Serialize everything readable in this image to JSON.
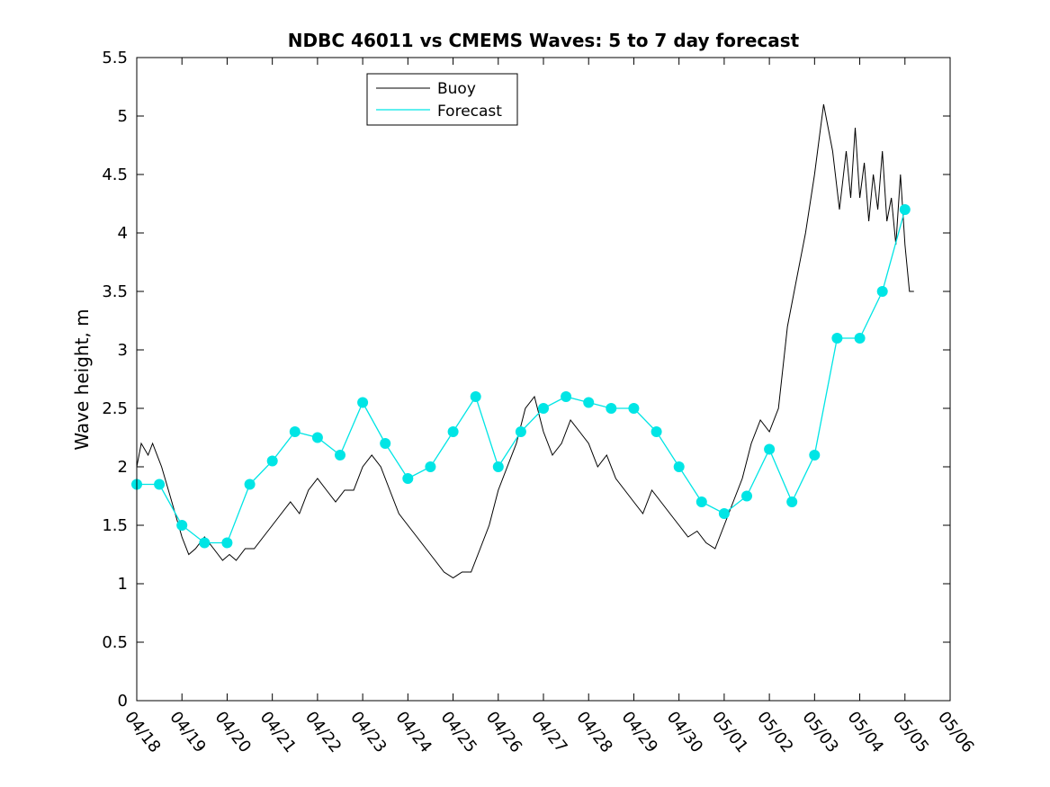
{
  "chart_data": {
    "type": "line",
    "title": "NDBC 46011 vs CMEMS Waves: 5 to 7 day forecast",
    "ylabel": "Wave height, m",
    "xlabel": "",
    "ylim": [
      0,
      5.5
    ],
    "xlim": [
      "04/18",
      "05/06"
    ],
    "y_ticks": [
      "0",
      "0.5",
      "1",
      "1.5",
      "2",
      "2.5",
      "3",
      "3.5",
      "4",
      "4.5",
      "5",
      "5.5"
    ],
    "x_ticks": [
      "04/18",
      "04/19",
      "04/20",
      "04/21",
      "04/22",
      "04/23",
      "04/24",
      "04/25",
      "04/26",
      "04/27",
      "04/28",
      "04/29",
      "04/30",
      "05/01",
      "05/02",
      "05/03",
      "05/04",
      "05/05",
      "05/06"
    ],
    "grid": false,
    "legend_position": "top-left",
    "colors": {
      "buoy": "#000000",
      "forecast": "#00e5e5"
    },
    "series": [
      {
        "name": "Buoy",
        "x_unit": "days since 04/18",
        "x": [
          0.0,
          0.1,
          0.25,
          0.35,
          0.55,
          0.7,
          0.85,
          1.0,
          1.15,
          1.3,
          1.5,
          1.7,
          1.9,
          2.05,
          2.2,
          2.4,
          2.6,
          2.8,
          3.0,
          3.2,
          3.4,
          3.6,
          3.8,
          4.0,
          4.2,
          4.4,
          4.6,
          4.8,
          5.0,
          5.2,
          5.4,
          5.6,
          5.8,
          6.0,
          6.2,
          6.4,
          6.6,
          6.8,
          7.0,
          7.2,
          7.4,
          7.6,
          7.8,
          8.0,
          8.2,
          8.4,
          8.6,
          8.8,
          9.0,
          9.2,
          9.4,
          9.6,
          9.8,
          10.0,
          10.2,
          10.4,
          10.6,
          10.8,
          11.0,
          11.2,
          11.4,
          11.6,
          11.8,
          12.0,
          12.2,
          12.4,
          12.6,
          12.8,
          13.0,
          13.2,
          13.4,
          13.6,
          13.8,
          14.0,
          14.2,
          14.4,
          14.6,
          14.8,
          15.0,
          15.2,
          15.4,
          15.55,
          15.7,
          15.8,
          15.9,
          16.0,
          16.1,
          16.2,
          16.3,
          16.4,
          16.5,
          16.6,
          16.7,
          16.8,
          16.9,
          17.0,
          17.1,
          17.2
        ],
        "y": [
          2.0,
          2.2,
          2.1,
          2.2,
          2.0,
          1.8,
          1.6,
          1.4,
          1.25,
          1.3,
          1.4,
          1.3,
          1.2,
          1.25,
          1.2,
          1.3,
          1.3,
          1.4,
          1.5,
          1.6,
          1.7,
          1.6,
          1.8,
          1.9,
          1.8,
          1.7,
          1.8,
          1.8,
          2.0,
          2.1,
          2.0,
          1.8,
          1.6,
          1.5,
          1.4,
          1.3,
          1.2,
          1.1,
          1.05,
          1.1,
          1.1,
          1.3,
          1.5,
          1.8,
          2.0,
          2.2,
          2.5,
          2.6,
          2.3,
          2.1,
          2.2,
          2.4,
          2.3,
          2.2,
          2.0,
          2.1,
          1.9,
          1.8,
          1.7,
          1.6,
          1.8,
          1.7,
          1.6,
          1.5,
          1.4,
          1.45,
          1.35,
          1.3,
          1.5,
          1.7,
          1.9,
          2.2,
          2.4,
          2.3,
          2.5,
          3.2,
          3.6,
          4.0,
          4.5,
          5.1,
          4.7,
          4.2,
          4.7,
          4.3,
          4.9,
          4.3,
          4.6,
          4.1,
          4.5,
          4.2,
          4.7,
          4.1,
          4.3,
          3.9,
          4.5,
          3.9,
          3.5,
          3.5
        ]
      },
      {
        "name": "Forecast",
        "x_unit": "days since 04/18",
        "x": [
          0.0,
          0.5,
          1.0,
          1.5,
          2.0,
          2.5,
          3.0,
          3.5,
          4.0,
          4.5,
          5.0,
          5.5,
          6.0,
          6.5,
          7.0,
          7.5,
          8.0,
          8.5,
          9.0,
          9.5,
          10.0,
          10.5,
          11.0,
          11.5,
          12.0,
          12.5,
          13.0,
          13.5,
          14.0,
          14.5,
          15.0,
          15.5,
          16.0,
          16.5,
          17.0
        ],
        "y": [
          1.85,
          1.85,
          1.5,
          1.35,
          1.35,
          1.85,
          2.05,
          2.3,
          2.25,
          2.1,
          2.55,
          2.2,
          1.9,
          2.0,
          2.3,
          2.6,
          2.0,
          2.3,
          2.5,
          2.6,
          2.55,
          2.5,
          2.5,
          2.3,
          2.0,
          1.7,
          1.6,
          1.75,
          2.15,
          1.7,
          2.1,
          3.1,
          3.1,
          3.5,
          4.2
        ]
      }
    ]
  },
  "legend": {
    "buoy_label": "Buoy",
    "forecast_label": "Forecast"
  }
}
